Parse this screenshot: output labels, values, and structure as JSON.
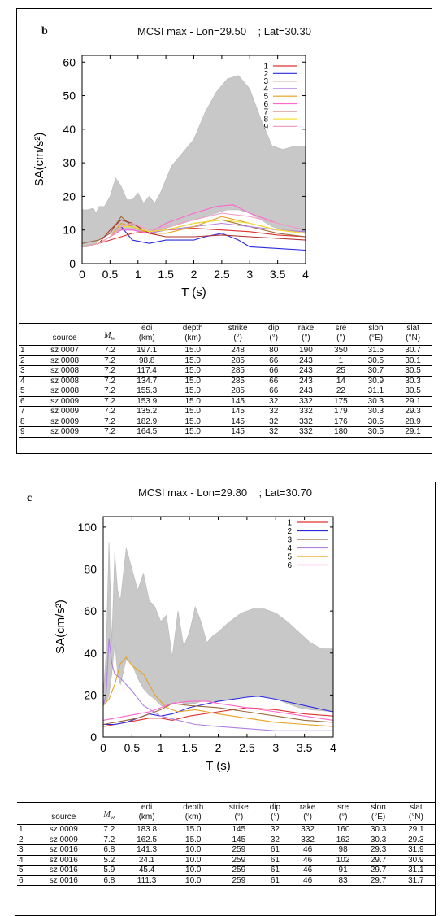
{
  "panels": [
    {
      "letter": "b",
      "title": "MCSI max - Lon=29.50    ; Lat=30.30",
      "table": {
        "headers": [
          [
            "",
            ""
          ],
          [
            "source",
            ""
          ],
          [
            "Mw",
            ""
          ],
          [
            "edi",
            "(km)"
          ],
          [
            "depth",
            "(km)"
          ],
          [
            "strike",
            "(°)"
          ],
          [
            "dip",
            "(°)"
          ],
          [
            "rake",
            "(°)"
          ],
          [
            "sre",
            "(°)"
          ],
          [
            "slon",
            "(°E)"
          ],
          [
            "slat",
            "(°N)"
          ]
        ],
        "rows": [
          [
            "1",
            "sz 0007",
            "7.2",
            "197.1",
            "15.0",
            "248",
            "80",
            "190",
            "350",
            "31.5",
            "30.7"
          ],
          [
            "2",
            "sz 0008",
            "7.2",
            "98.8",
            "15.0",
            "285",
            "66",
            "243",
            "1",
            "30.5",
            "30.1"
          ],
          [
            "3",
            "sz 0008",
            "7.2",
            "117.4",
            "15.0",
            "285",
            "66",
            "243",
            "25",
            "30.7",
            "30.5"
          ],
          [
            "4",
            "sz 0008",
            "7.2",
            "134.7",
            "15.0",
            "285",
            "66",
            "243",
            "14",
            "30.9",
            "30.3"
          ],
          [
            "5",
            "sz 0008",
            "7.2",
            "155.3",
            "15.0",
            "285",
            "66",
            "243",
            "22",
            "31.1",
            "30.5"
          ],
          [
            "6",
            "sz 0009",
            "7.2",
            "153.9",
            "15.0",
            "145",
            "32",
            "332",
            "175",
            "30.3",
            "29.1"
          ],
          [
            "7",
            "sz 0009",
            "7.2",
            "135.2",
            "15.0",
            "145",
            "32",
            "332",
            "179",
            "30.3",
            "29.3"
          ],
          [
            "8",
            "sz 0009",
            "7.2",
            "182.9",
            "15.0",
            "145",
            "32",
            "332",
            "176",
            "30.5",
            "28.9"
          ],
          [
            "9",
            "sz 0009",
            "7.2",
            "164.5",
            "15.0",
            "145",
            "32",
            "332",
            "180",
            "30.5",
            "29.1"
          ]
        ]
      }
    },
    {
      "letter": "c",
      "title": "MCSI max - Lon=29.80    ; Lat=30.70",
      "table": {
        "headers": [
          [
            "",
            ""
          ],
          [
            "source",
            ""
          ],
          [
            "Mw",
            ""
          ],
          [
            "edi",
            "(km)"
          ],
          [
            "depth",
            "(km)"
          ],
          [
            "strike",
            "(°)"
          ],
          [
            "dip",
            "(°)"
          ],
          [
            "rake",
            "(°)"
          ],
          [
            "sre",
            "(°)"
          ],
          [
            "slon",
            "(°E)"
          ],
          [
            "slat",
            "(°N)"
          ]
        ],
        "rows": [
          [
            "1",
            "sz 0009",
            "7.2",
            "183.8",
            "15.0",
            "145",
            "32",
            "332",
            "160",
            "30.3",
            "29.1"
          ],
          [
            "2",
            "sz 0009",
            "7.2",
            "162.5",
            "15.0",
            "145",
            "32",
            "332",
            "162",
            "30.3",
            "29.3"
          ],
          [
            "3",
            "sz 0016",
            "6.8",
            "141.3",
            "10.0",
            "259",
            "61",
            "46",
            "98",
            "29.3",
            "31.9"
          ],
          [
            "4",
            "sz 0016",
            "5.2",
            "24.1",
            "10.0",
            "259",
            "61",
            "46",
            "102",
            "29.7",
            "30.9"
          ],
          [
            "5",
            "sz 0016",
            "5.9",
            "45.4",
            "10.0",
            "259",
            "61",
            "46",
            "91",
            "29.7",
            "31.1"
          ],
          [
            "6",
            "sz 0016",
            "6.8",
            "111.3",
            "10.0",
            "259",
            "61",
            "46",
            "83",
            "29.7",
            "31.7"
          ]
        ]
      }
    }
  ],
  "chart_data": [
    {
      "type": "area",
      "title": "MCSI max - Lon=29.50    ; Lat=30.30",
      "xlabel": "T (s)",
      "ylabel": "SA(cm/s²)",
      "xlim": [
        0,
        4
      ],
      "ylim": [
        0,
        62
      ],
      "xticks": [
        "0",
        "0.5",
        "1",
        "1.5",
        "2",
        "2.5",
        "3",
        "3.5",
        "4"
      ],
      "yticks": [
        "0",
        "10",
        "20",
        "30",
        "40",
        "50",
        "60"
      ],
      "grid": false,
      "legend_position": "top-right",
      "envelope": {
        "color": "#c8c8c8",
        "x": [
          0,
          0.1,
          0.2,
          0.25,
          0.3,
          0.4,
          0.5,
          0.6,
          0.7,
          0.8,
          0.9,
          1.0,
          1.1,
          1.2,
          1.3,
          1.4,
          1.5,
          1.6,
          1.8,
          2.0,
          2.2,
          2.4,
          2.6,
          2.8,
          3.0,
          3.2,
          3.4,
          3.6,
          3.8,
          4.0
        ],
        "lower": [
          5,
          5,
          5.5,
          6,
          7,
          8,
          9,
          9.5,
          10,
          10,
          10,
          9.5,
          9.5,
          9.5,
          10,
          10,
          10.5,
          11,
          12,
          13,
          14,
          15,
          16,
          16,
          15,
          13,
          11,
          10,
          9.5,
          9
        ],
        "upper": [
          16,
          16,
          16.5,
          15,
          17,
          17,
          20,
          25.5,
          23,
          19,
          19,
          21,
          18,
          20,
          18,
          21,
          25,
          29,
          33,
          37,
          45,
          51,
          55,
          56,
          52,
          43,
          35,
          34,
          35,
          35
        ]
      },
      "series": [
        {
          "name": "1",
          "color": "#e03030",
          "x": [
            0,
            0.3,
            0.5,
            0.7,
            0.9,
            1.2,
            1.5,
            2.0,
            2.5,
            3.0,
            3.5,
            4.0
          ],
          "values": [
            5,
            6,
            7,
            8,
            9,
            9.5,
            10,
            10.5,
            10,
            9.5,
            8.5,
            8
          ]
        },
        {
          "name": "2",
          "color": "#2a2ae0",
          "x": [
            0,
            0.3,
            0.5,
            0.7,
            0.9,
            1.2,
            1.5,
            2.0,
            2.2,
            2.5,
            2.8,
            3.0,
            3.5,
            4.0
          ],
          "values": [
            5,
            6,
            8,
            11,
            7,
            6,
            7,
            7,
            8,
            9,
            7,
            5,
            4.5,
            4
          ]
        },
        {
          "name": "3",
          "color": "#9a6a3a",
          "x": [
            0,
            0.3,
            0.5,
            0.7,
            0.9,
            1.2,
            1.5,
            2.0,
            2.5,
            3.0,
            3.5,
            4.0
          ],
          "values": [
            6,
            7,
            9,
            14,
            11,
            9,
            10,
            12,
            13,
            11,
            9,
            8
          ]
        },
        {
          "name": "4",
          "color": "#b080e0",
          "x": [
            0,
            0.3,
            0.5,
            0.7,
            0.9,
            1.2,
            1.5,
            2.0,
            2.5,
            3.0,
            3.5,
            4.0
          ],
          "values": [
            5,
            6,
            8,
            10,
            10,
            9,
            10,
            11,
            12,
            11,
            10,
            9.5
          ]
        },
        {
          "name": "5",
          "color": "#e8a020",
          "x": [
            0,
            0.3,
            0.5,
            0.7,
            0.9,
            1.2,
            1.5,
            2.0,
            2.5,
            3.0,
            3.5,
            4.0
          ],
          "values": [
            5,
            6,
            8,
            12,
            11,
            9,
            9,
            11,
            14,
            12,
            10,
            9
          ]
        },
        {
          "name": "6",
          "color": "#ff66cc",
          "x": [
            0,
            0.3,
            0.5,
            0.7,
            0.9,
            1.2,
            1.5,
            2.0,
            2.4,
            2.7,
            3.0,
            3.5,
            4.0
          ],
          "values": [
            5,
            6,
            8,
            10,
            10,
            9,
            12,
            15,
            17,
            17.5,
            15,
            12,
            10
          ]
        },
        {
          "name": "7",
          "color": "#b03030",
          "x": [
            0,
            0.3,
            0.5,
            0.7,
            0.9,
            1.2,
            1.5,
            2.0,
            2.5,
            3.0,
            3.5,
            4.0
          ],
          "values": [
            5,
            6,
            10,
            13,
            12,
            9,
            8,
            8,
            8.5,
            8,
            7.5,
            7
          ]
        },
        {
          "name": "8",
          "color": "#f5e030",
          "x": [
            0,
            0.3,
            0.5,
            0.7,
            0.9,
            1.2,
            1.5,
            2.0,
            2.5,
            3.0,
            3.5,
            4.0
          ],
          "values": [
            5,
            6,
            8,
            11,
            11,
            9.5,
            10,
            12,
            13,
            12,
            10,
            9
          ]
        },
        {
          "name": "9",
          "color": "#f0a0c8",
          "x": [
            0,
            0.3,
            0.5,
            0.7,
            0.9,
            1.2,
            1.5,
            2.0,
            2.5,
            3.0,
            3.5,
            4.0
          ],
          "values": [
            5,
            6,
            8,
            11,
            12,
            10,
            11,
            13,
            15,
            14,
            12,
            10
          ]
        }
      ]
    },
    {
      "type": "area",
      "title": "MCSI max - Lon=29.80    ; Lat=30.70",
      "xlabel": "T (s)",
      "ylabel": "SA(cm/s²)",
      "xlim": [
        0,
        4
      ],
      "ylim": [
        0,
        105
      ],
      "xticks": [
        "0",
        "0.5",
        "1",
        "1.5",
        "2",
        "2.5",
        "3",
        "3.5",
        "4"
      ],
      "yticks": [
        "0",
        "20",
        "40",
        "60",
        "80",
        "100"
      ],
      "grid": false,
      "legend_position": "top-right",
      "envelope": {
        "color": "#c8c8c8",
        "x": [
          0,
          0.05,
          0.1,
          0.15,
          0.2,
          0.25,
          0.3,
          0.4,
          0.5,
          0.6,
          0.7,
          0.8,
          0.9,
          1.0,
          1.1,
          1.2,
          1.3,
          1.4,
          1.5,
          1.6,
          1.7,
          1.8,
          1.9,
          2.0,
          2.2,
          2.4,
          2.6,
          2.8,
          3.0,
          3.2,
          3.4,
          3.6,
          3.8,
          4.0
        ],
        "lower": [
          15,
          16,
          20,
          30,
          45,
          30,
          25,
          37,
          35,
          28,
          23,
          20,
          18,
          15,
          14,
          16,
          17,
          16,
          16,
          16,
          17,
          17,
          17,
          17,
          18,
          19,
          19.5,
          19,
          18,
          16,
          14,
          13,
          12.5,
          12
        ],
        "upper": [
          20,
          40,
          93,
          45,
          88,
          70,
          65,
          90,
          80,
          70,
          78,
          65,
          62,
          55,
          58,
          38,
          60,
          43,
          50,
          62,
          55,
          45,
          48,
          50,
          55,
          59,
          61,
          61,
          59,
          55,
          50,
          45,
          42,
          42
        ]
      },
      "series": [
        {
          "name": "1",
          "color": "#e03030",
          "x": [
            0,
            0.2,
            0.4,
            0.6,
            0.8,
            1.0,
            1.2,
            1.5,
            2.0,
            2.5,
            3.0,
            3.5,
            4.0
          ],
          "values": [
            5,
            6,
            7,
            8,
            9,
            9,
            8,
            10,
            12,
            14,
            13,
            11,
            10
          ]
        },
        {
          "name": "2",
          "color": "#2a2ae0",
          "x": [
            0,
            0.2,
            0.4,
            0.6,
            0.8,
            1.0,
            1.2,
            1.5,
            2.0,
            2.5,
            2.7,
            3.0,
            3.5,
            4.0
          ],
          "values": [
            6,
            6,
            7,
            9,
            11,
            10,
            11,
            14,
            17,
            19,
            19.5,
            18,
            15,
            12
          ]
        },
        {
          "name": "3",
          "color": "#9a6a3a",
          "x": [
            0,
            0.2,
            0.4,
            0.6,
            0.8,
            1.0,
            1.2,
            1.5,
            2.0,
            2.5,
            3.0,
            3.5,
            4.0
          ],
          "values": [
            6,
            7,
            8,
            9,
            11,
            13,
            16,
            15,
            14,
            12,
            10,
            8,
            7
          ]
        },
        {
          "name": "4",
          "color": "#b080e0",
          "x": [
            0,
            0.05,
            0.1,
            0.15,
            0.2,
            0.3,
            0.5,
            0.7,
            1.0,
            1.3,
            1.6,
            2.0,
            2.5,
            3.0,
            3.5,
            4.0
          ],
          "values": [
            15,
            20,
            47,
            35,
            30,
            28,
            22,
            15,
            10,
            8,
            6,
            5,
            4,
            3,
            3,
            3
          ]
        },
        {
          "name": "5",
          "color": "#e8a020",
          "x": [
            0,
            0.1,
            0.2,
            0.3,
            0.4,
            0.5,
            0.7,
            0.9,
            1.1,
            1.3,
            1.6,
            2.0,
            2.5,
            3.0,
            3.5,
            4.0
          ],
          "values": [
            15,
            18,
            25,
            35,
            38,
            34,
            30,
            20,
            14,
            12,
            13,
            11,
            9,
            7,
            6,
            5
          ]
        },
        {
          "name": "6",
          "color": "#ff66cc",
          "x": [
            0,
            0.2,
            0.4,
            0.6,
            0.8,
            1.0,
            1.2,
            1.5,
            1.8,
            2.0,
            2.5,
            3.0,
            3.5,
            4.0
          ],
          "values": [
            8,
            9,
            10,
            11,
            12,
            14,
            16,
            17,
            17,
            16,
            14,
            12,
            10,
            8
          ]
        }
      ]
    }
  ]
}
